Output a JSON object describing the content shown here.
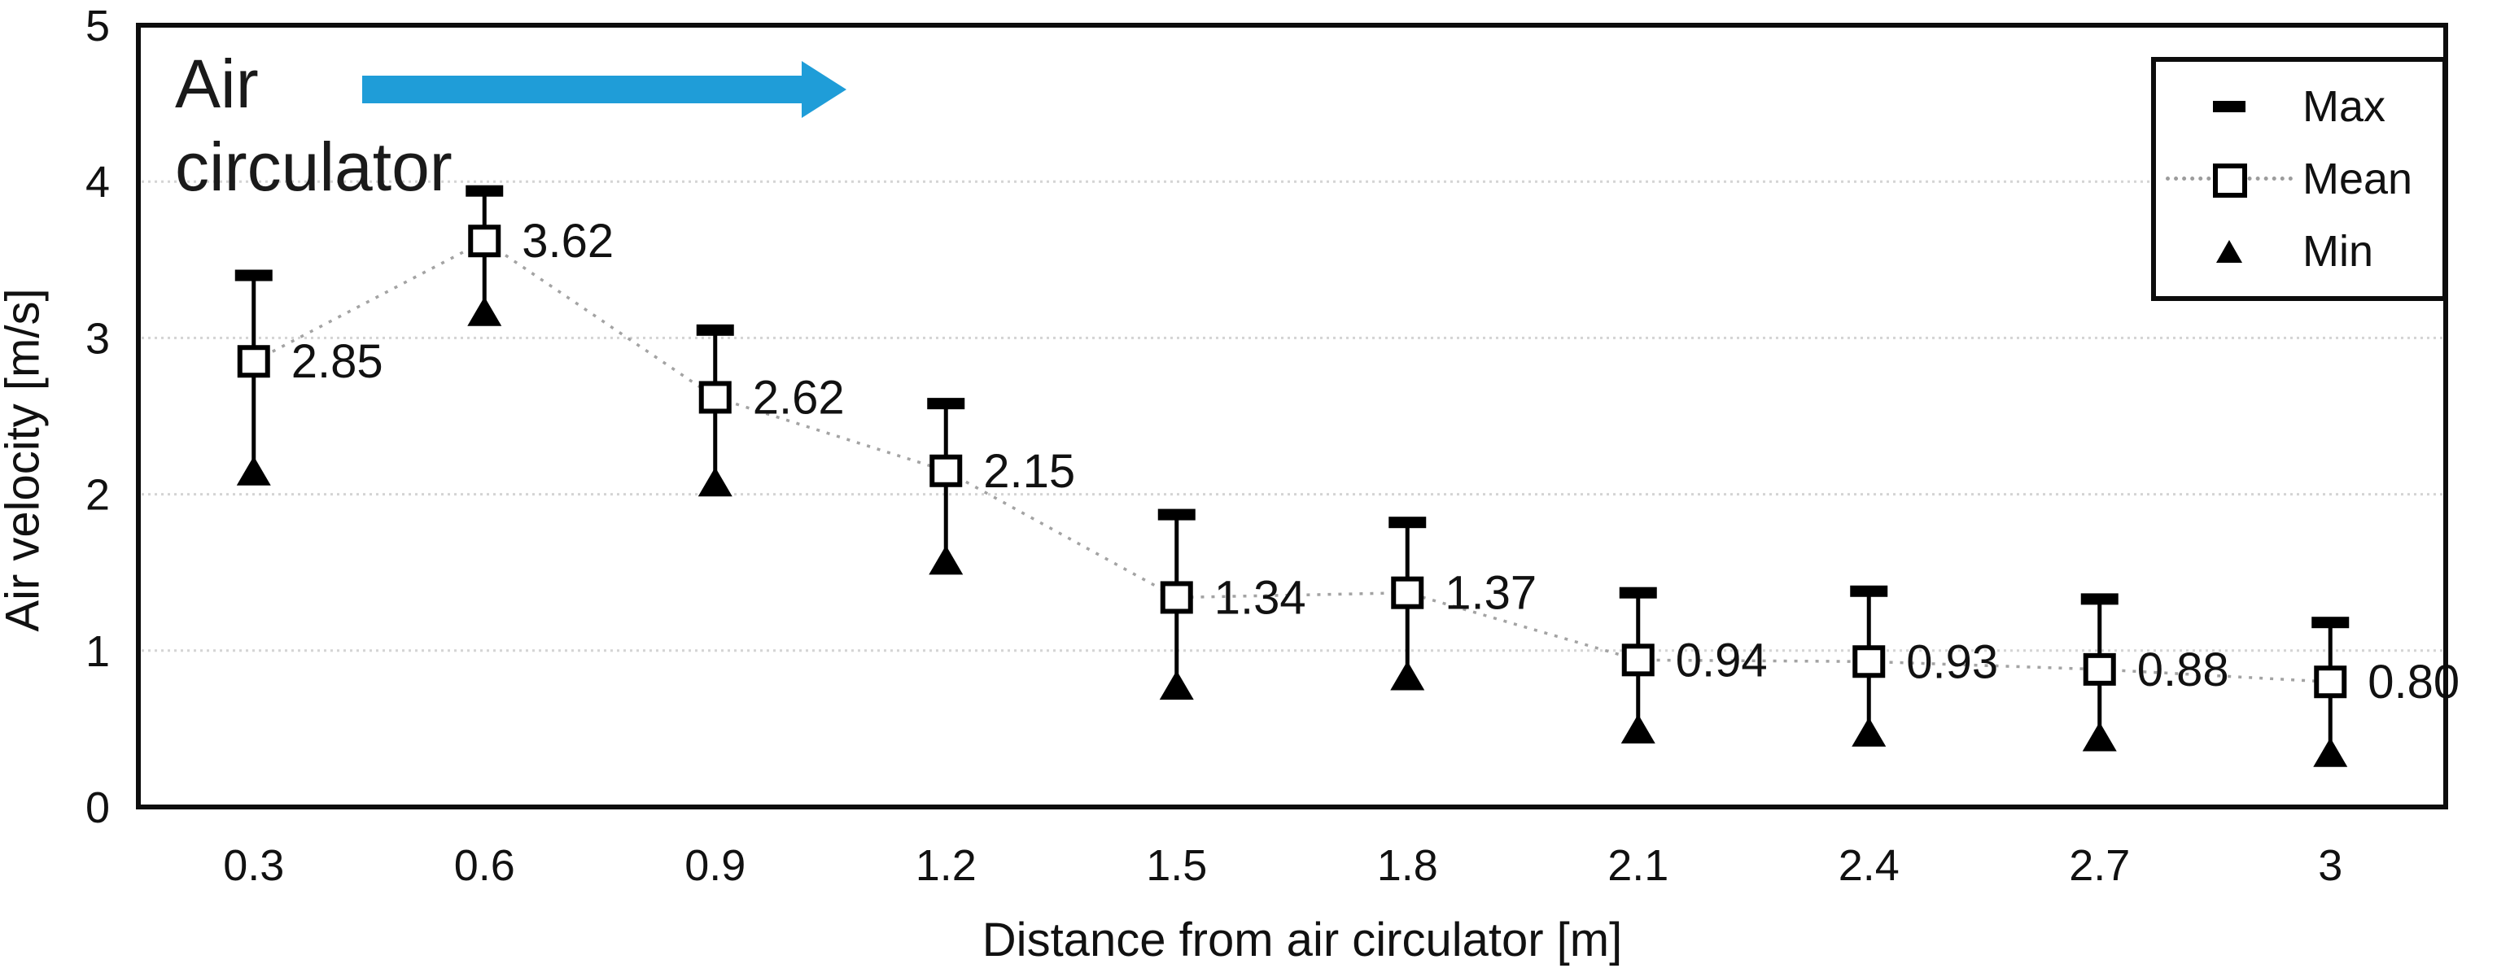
{
  "annotation": {
    "line1": "Air",
    "line2": "circulator"
  },
  "legend": {
    "items": [
      {
        "label": "Max",
        "marker": "black-dash"
      },
      {
        "label": "Mean",
        "marker": "open-square-dotted-line"
      },
      {
        "label": "Min",
        "marker": "filled-triangle"
      }
    ]
  },
  "colors": {
    "arrow": "#1F9DD8",
    "marker": "#000000",
    "gridline": "#D4D4D4",
    "connector": "#A3A3A3",
    "border": "#0d0d0d",
    "text": "#111111"
  },
  "chart_data": {
    "type": "line",
    "title": "",
    "xlabel": "Distance from air circulator [m]",
    "ylabel": "Air velocity [m/s]",
    "categories": [
      "0.3",
      "0.6",
      "0.9",
      "1.2",
      "1.5",
      "1.8",
      "2.1",
      "2.4",
      "2.7",
      "3"
    ],
    "y_ticks": [
      0,
      1,
      2,
      3,
      4,
      5
    ],
    "y_tick_labels": [
      "0",
      "1",
      "2",
      "3",
      "4",
      "5"
    ],
    "ylim": [
      0,
      5
    ],
    "grid": true,
    "legend_position": "top-right",
    "series": [
      {
        "name": "Max",
        "marker": "dash",
        "values": [
          3.4,
          3.94,
          3.05,
          2.58,
          1.87,
          1.82,
          1.37,
          1.38,
          1.33,
          1.18
        ]
      },
      {
        "name": "Mean",
        "marker": "open-square",
        "line": "dotted",
        "values": [
          2.85,
          3.62,
          2.62,
          2.15,
          1.34,
          1.37,
          0.94,
          0.93,
          0.88,
          0.8
        ],
        "labels": [
          "2.85",
          "3.62",
          "2.62",
          "2.15",
          "1.34",
          "1.37",
          "0.94",
          "0.93",
          "0.88",
          "0.80"
        ]
      },
      {
        "name": "Min",
        "marker": "filled-triangle",
        "values": [
          2.15,
          3.17,
          2.08,
          1.58,
          0.78,
          0.84,
          0.5,
          0.48,
          0.45,
          0.35
        ]
      }
    ]
  }
}
